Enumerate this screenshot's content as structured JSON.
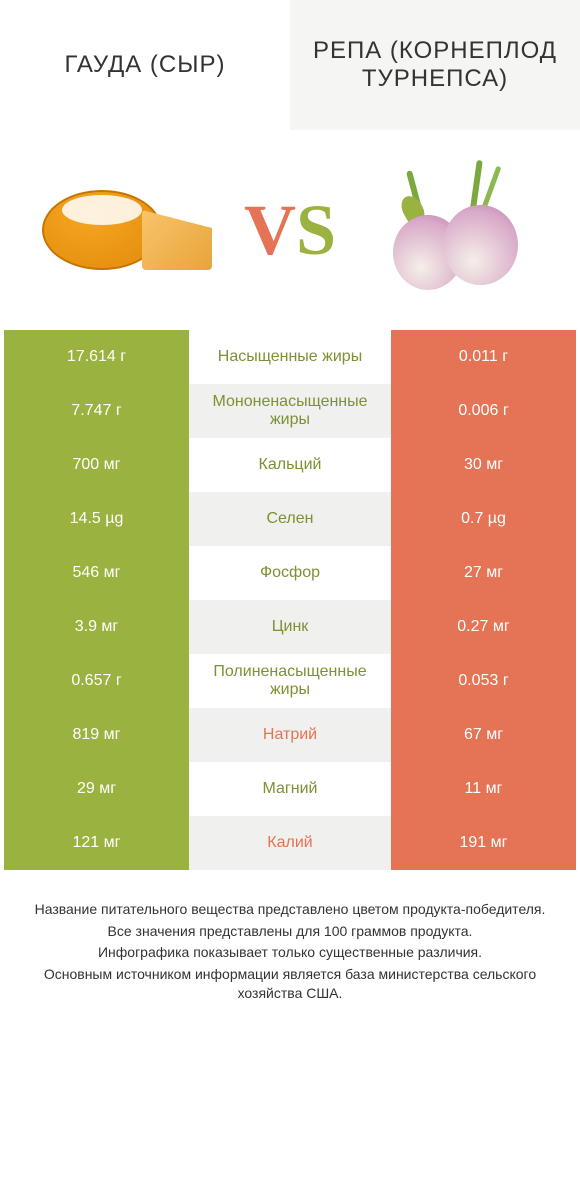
{
  "header": {
    "left": "ГАУДА (СЫР)",
    "right": "РЕПА (КОРНЕПЛОД ТУРНЕПСА)"
  },
  "vs": {
    "v": "V",
    "s": "S"
  },
  "colors": {
    "green": "#9ab23f",
    "orange": "#e57355",
    "green_text": "#7a9232",
    "orange_text": "#e57355"
  },
  "rows": [
    {
      "label": "Насыщенные жиры",
      "left": "17.614 г",
      "right": "0.011 г",
      "winner": "left"
    },
    {
      "label": "Мононенасыщенные жиры",
      "left": "7.747 г",
      "right": "0.006 г",
      "winner": "left"
    },
    {
      "label": "Кальций",
      "left": "700 мг",
      "right": "30 мг",
      "winner": "left"
    },
    {
      "label": "Селен",
      "left": "14.5 µg",
      "right": "0.7 µg",
      "winner": "left"
    },
    {
      "label": "Фосфор",
      "left": "546 мг",
      "right": "27 мг",
      "winner": "left"
    },
    {
      "label": "Цинк",
      "left": "3.9 мг",
      "right": "0.27 мг",
      "winner": "left"
    },
    {
      "label": "Полиненасыщенные жиры",
      "left": "0.657 г",
      "right": "0.053 г",
      "winner": "left"
    },
    {
      "label": "Натрий",
      "left": "819 мг",
      "right": "67 мг",
      "winner": "right"
    },
    {
      "label": "Магний",
      "left": "29 мг",
      "right": "11 мг",
      "winner": "left"
    },
    {
      "label": "Калий",
      "left": "121 мг",
      "right": "191 мг",
      "winner": "right"
    }
  ],
  "footer": [
    "Название питательного вещества представлено цветом продукта-победителя.",
    "Все значения представлены для 100 граммов продукта.",
    "Инфографика показывает только существенные различия.",
    "Основным источником информации является база министерства сельского хозяйства США."
  ]
}
